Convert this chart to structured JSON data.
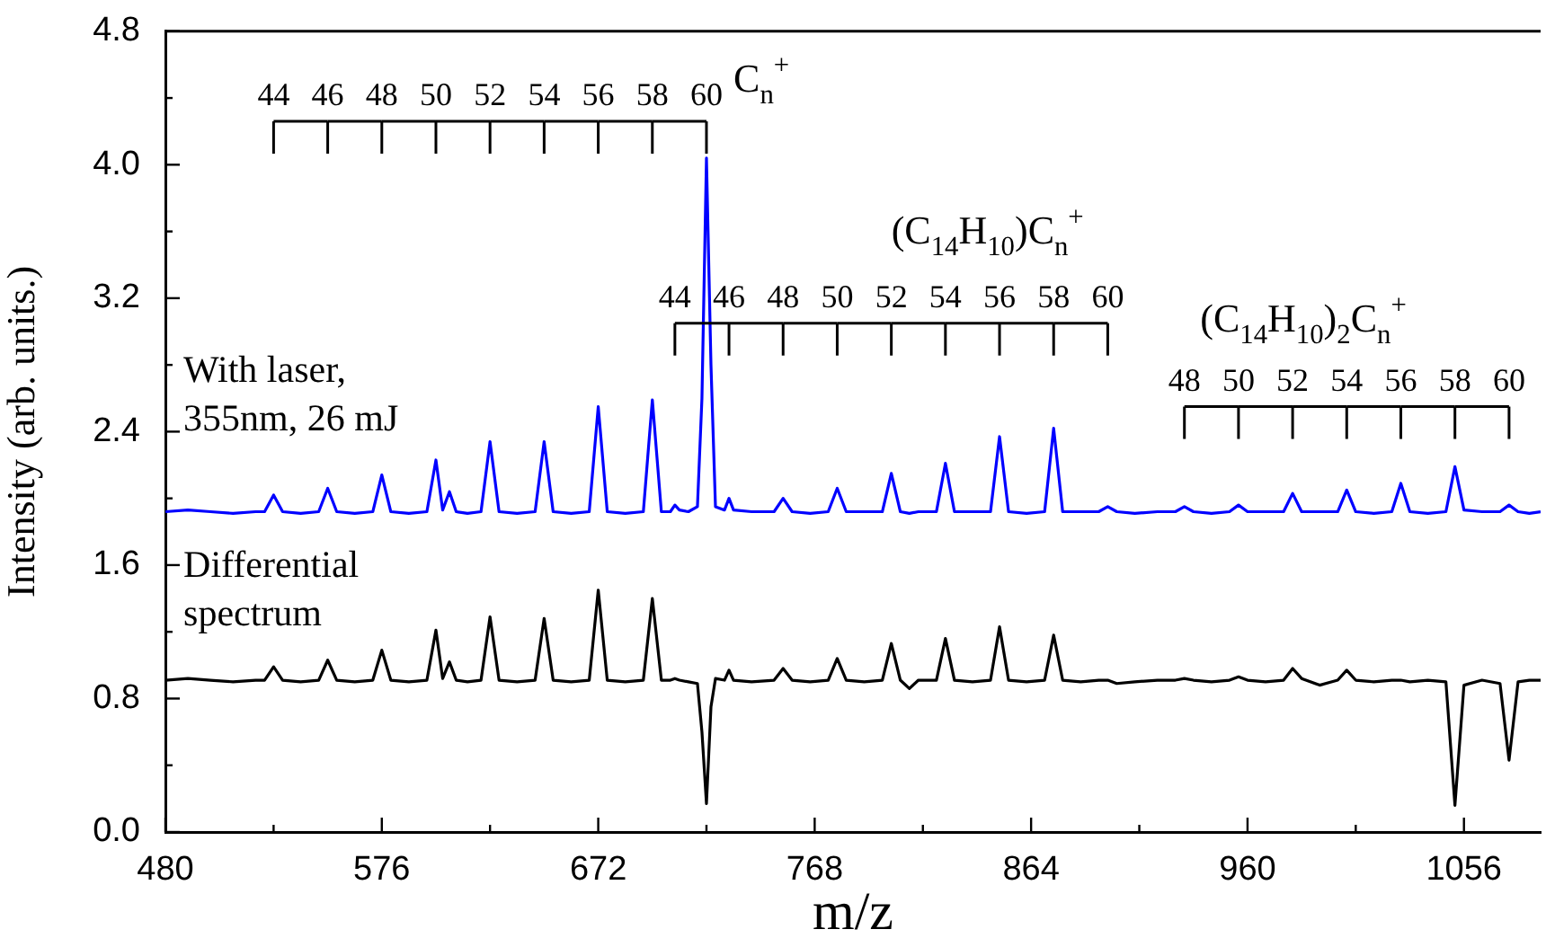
{
  "chart_data": {
    "type": "line",
    "xlabel": "m/z",
    "ylabel": "Intensity (arb. units.)",
    "marker": "none",
    "xlim": [
      480,
      1090
    ],
    "xticks": [
      480,
      {
        "value": 528,
        "label": null
      },
      576,
      {
        "value": 624,
        "label": null
      },
      672,
      {
        "value": 720,
        "label": null
      },
      768,
      {
        "value": 816,
        "label": null
      },
      864,
      {
        "value": 912,
        "label": null
      },
      960,
      {
        "value": 1008,
        "label": null
      },
      1056
    ],
    "ylim": [
      0,
      4.8
    ],
    "yticks": [
      {
        "value": 0,
        "label": "0.0"
      },
      {
        "value": 0.4,
        "label": null
      },
      {
        "value": 0.8,
        "label": "0.8"
      },
      {
        "value": 1.2,
        "label": null
      },
      {
        "value": 1.6,
        "label": "1.6"
      },
      {
        "value": 2.0,
        "label": null
      },
      {
        "value": 2.4,
        "label": "2.4"
      },
      {
        "value": 2.8,
        "label": null
      },
      {
        "value": 3.2,
        "label": "3.2"
      },
      {
        "value": 3.6,
        "label": null
      },
      {
        "value": 4.0,
        "label": "4.0"
      },
      {
        "value": 4.4,
        "label": null
      },
      {
        "value": 4.8,
        "label": "4.8"
      }
    ],
    "x": [
      480,
      490,
      500,
      510,
      520,
      524,
      528,
      532,
      540,
      548,
      552,
      556,
      564,
      572,
      576,
      580,
      588,
      596,
      600,
      603,
      606,
      609,
      614,
      620,
      624,
      628,
      636,
      644,
      648,
      652,
      660,
      668,
      672,
      676,
      684,
      692,
      696,
      700,
      704,
      706,
      708,
      712,
      716,
      718,
      720,
      722,
      724,
      728,
      730,
      732,
      740,
      750,
      754,
      758,
      766,
      774,
      778,
      782,
      790,
      798,
      802,
      806,
      810,
      814,
      822,
      826,
      830,
      838,
      846,
      850,
      854,
      862,
      870,
      874,
      878,
      886,
      894,
      898,
      902,
      910,
      920,
      928,
      932,
      936,
      944,
      952,
      956,
      960,
      968,
      976,
      980,
      984,
      992,
      1000,
      1004,
      1008,
      1016,
      1024,
      1028,
      1032,
      1040,
      1048,
      1052,
      1056,
      1064,
      1072,
      1076,
      1080,
      1085,
      1090
    ],
    "series": [
      {
        "name": "With laser,\n355nm, 26 mJ",
        "color": "#0000ff",
        "values": [
          1.92,
          1.93,
          1.92,
          1.91,
          1.92,
          1.92,
          2.02,
          1.92,
          1.91,
          1.92,
          2.06,
          1.92,
          1.91,
          1.92,
          2.14,
          1.92,
          1.91,
          1.92,
          2.23,
          1.93,
          2.04,
          1.92,
          1.91,
          1.92,
          2.34,
          1.92,
          1.91,
          1.92,
          2.34,
          1.92,
          1.91,
          1.92,
          2.55,
          1.92,
          1.91,
          1.92,
          2.59,
          1.92,
          1.92,
          1.96,
          1.93,
          1.92,
          1.95,
          2.6,
          4.04,
          2.8,
          1.95,
          1.93,
          2.0,
          1.93,
          1.92,
          1.92,
          2.0,
          1.92,
          1.91,
          1.92,
          2.06,
          1.92,
          1.92,
          1.92,
          2.15,
          1.92,
          1.91,
          1.92,
          1.92,
          2.21,
          1.92,
          1.92,
          1.92,
          2.37,
          1.92,
          1.91,
          1.92,
          2.42,
          1.92,
          1.92,
          1.92,
          1.95,
          1.92,
          1.91,
          1.92,
          1.92,
          1.95,
          1.92,
          1.91,
          1.92,
          1.96,
          1.92,
          1.92,
          1.92,
          2.03,
          1.92,
          1.92,
          1.92,
          2.05,
          1.92,
          1.91,
          1.92,
          2.09,
          1.92,
          1.91,
          1.92,
          2.19,
          1.93,
          1.92,
          1.92,
          1.96,
          1.92,
          1.91,
          1.92
        ]
      },
      {
        "name": "Differential\nspectrum",
        "color": "#000000",
        "values": [
          0.91,
          0.92,
          0.91,
          0.9,
          0.91,
          0.91,
          0.99,
          0.91,
          0.9,
          0.91,
          1.03,
          0.91,
          0.9,
          0.91,
          1.09,
          0.91,
          0.9,
          0.91,
          1.21,
          0.92,
          1.02,
          0.91,
          0.9,
          0.91,
          1.29,
          0.91,
          0.9,
          0.91,
          1.28,
          0.91,
          0.9,
          0.91,
          1.45,
          0.91,
          0.9,
          0.91,
          1.4,
          0.91,
          0.91,
          0.92,
          0.91,
          0.9,
          0.89,
          0.6,
          0.17,
          0.75,
          0.92,
          0.91,
          0.97,
          0.91,
          0.9,
          0.91,
          0.98,
          0.91,
          0.9,
          0.91,
          1.04,
          0.91,
          0.9,
          0.91,
          1.13,
          0.91,
          0.86,
          0.91,
          0.91,
          1.16,
          0.91,
          0.9,
          0.91,
          1.23,
          0.91,
          0.9,
          0.91,
          1.18,
          0.91,
          0.9,
          0.91,
          0.91,
          0.89,
          0.9,
          0.91,
          0.91,
          0.92,
          0.91,
          0.9,
          0.91,
          0.93,
          0.91,
          0.9,
          0.91,
          0.98,
          0.92,
          0.88,
          0.91,
          0.97,
          0.91,
          0.9,
          0.91,
          0.91,
          0.9,
          0.91,
          0.9,
          0.16,
          0.88,
          0.91,
          0.89,
          0.43,
          0.9,
          0.91,
          0.91
        ]
      }
    ],
    "annotations": [
      "C$_{n}$$^{+}$",
      "(C$_{14}$H$_{10}$)C$_{n}$$^{+}$",
      "(C$_{14}$H$_{10}$)$_{2}$C$_{n}$$^{+}$",
      "44",
      "46",
      "48",
      "50",
      "52",
      "54",
      "56",
      "58",
      "60",
      "44",
      "46",
      "48",
      "50",
      "52",
      "54",
      "56",
      "58",
      "60",
      "48",
      "50",
      "52",
      "54",
      "56",
      "58",
      "60"
    ]
  }
}
